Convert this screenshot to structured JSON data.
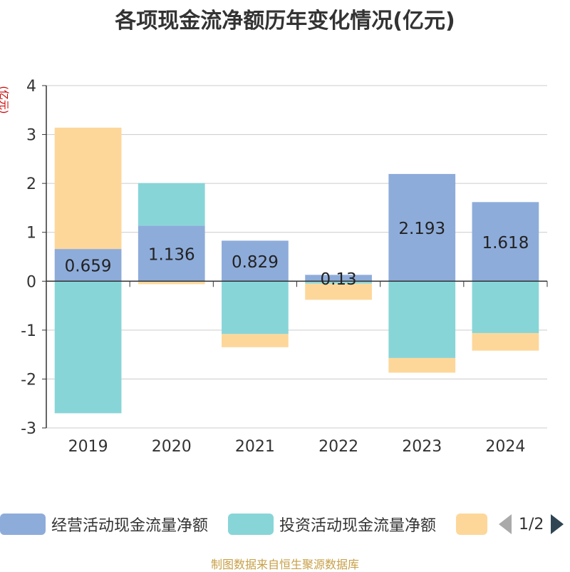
{
  "chart_data": {
    "type": "bar",
    "stacked": true,
    "title": "各项现金流净额历年变化情况(亿元)",
    "ylabel": "(亿元)",
    "categories": [
      "2019",
      "2020",
      "2021",
      "2022",
      "2023",
      "2024"
    ],
    "ylim": [
      -3,
      4
    ],
    "yticks": [
      4,
      3,
      2,
      1,
      0,
      -1,
      -2,
      -3
    ],
    "grid": true,
    "series": [
      {
        "name": "经营活动现金流量净额",
        "color": "#8eacda",
        "values": [
          0.659,
          1.136,
          0.829,
          0.13,
          2.193,
          1.618
        ],
        "labels": [
          "0.659",
          "1.136",
          "0.829",
          "0.13",
          "2.193",
          "1.618"
        ]
      },
      {
        "name": "投资活动现金流量净额",
        "color": "#88d5d8",
        "values": [
          -2.7,
          0.87,
          -1.08,
          -0.05,
          -1.57,
          -1.06
        ]
      },
      {
        "name": "",
        "color": "#fdd79a",
        "values": [
          2.48,
          -0.06,
          -0.27,
          -0.33,
          -0.3,
          -0.36
        ]
      }
    ]
  },
  "legend": {
    "page": "1/2"
  },
  "source": "制图数据来自恒生聚源数据库"
}
